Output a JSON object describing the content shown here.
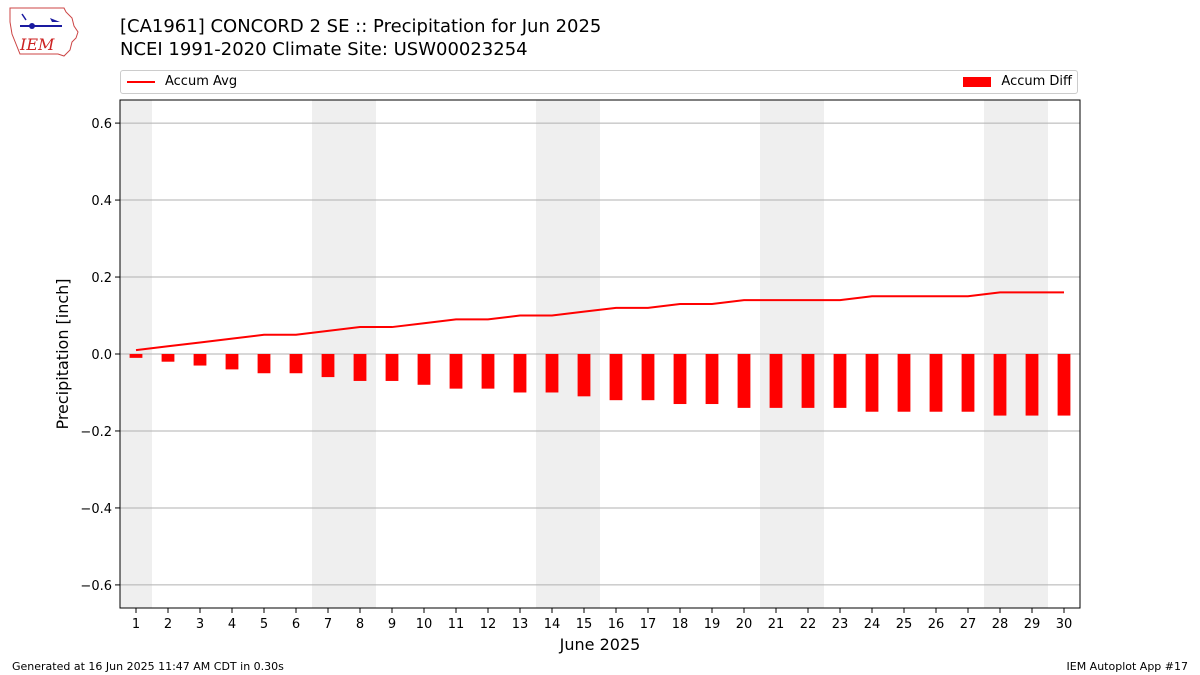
{
  "header": {
    "title_line1": "[CA1961] CONCORD 2 SE :: Precipitation for Jun 2025",
    "title_line2": "NCEI 1991-2020 Climate Site: USW00023254",
    "logo_text": "IEM"
  },
  "legend": {
    "line_label": "Accum Avg",
    "bar_label": "Accum Diff",
    "placement": "top, above plot"
  },
  "footer": {
    "left": "Generated at 16 Jun 2025 11:47 AM CDT in 0.30s",
    "right": "IEM Autoplot App #17"
  },
  "colors": {
    "series": "#ff0000",
    "weekend_shade": "#efefef",
    "grid": "#b0b0b0"
  },
  "chart_data": {
    "type": "bar",
    "xlabel": "June 2025",
    "ylabel": "Precipitation [inch]",
    "ylim": [
      -0.66,
      0.66
    ],
    "xlim": [
      0.5,
      30.5
    ],
    "yticks": [
      -0.6,
      -0.4,
      -0.2,
      0.0,
      0.2,
      0.4,
      0.6
    ],
    "ytick_labels": [
      "−0.6",
      "−0.4",
      "−0.2",
      "0.0",
      "0.2",
      "0.4",
      "0.6"
    ],
    "grid": "horizontal",
    "x": [
      1,
      2,
      3,
      4,
      5,
      6,
      7,
      8,
      9,
      10,
      11,
      12,
      13,
      14,
      15,
      16,
      17,
      18,
      19,
      20,
      21,
      22,
      23,
      24,
      25,
      26,
      27,
      28,
      29,
      30
    ],
    "shaded_days": [
      1,
      7,
      8,
      14,
      15,
      21,
      22,
      28,
      29
    ],
    "series": [
      {
        "name": "Accum Avg",
        "type": "line",
        "values": [
          0.01,
          0.02,
          0.03,
          0.04,
          0.05,
          0.05,
          0.06,
          0.07,
          0.07,
          0.08,
          0.09,
          0.09,
          0.1,
          0.1,
          0.11,
          0.12,
          0.12,
          0.13,
          0.13,
          0.14,
          0.14,
          0.14,
          0.14,
          0.15,
          0.15,
          0.15,
          0.15,
          0.16,
          0.16,
          0.16
        ]
      },
      {
        "name": "Accum Diff",
        "type": "bar",
        "values": [
          -0.01,
          -0.02,
          -0.03,
          -0.04,
          -0.05,
          -0.05,
          -0.06,
          -0.07,
          -0.07,
          -0.08,
          -0.09,
          -0.09,
          -0.1,
          -0.1,
          -0.11,
          -0.12,
          -0.12,
          -0.13,
          -0.13,
          -0.14,
          -0.14,
          -0.14,
          -0.14,
          -0.15,
          -0.15,
          -0.15,
          -0.15,
          -0.16,
          -0.16,
          -0.16
        ]
      }
    ]
  }
}
